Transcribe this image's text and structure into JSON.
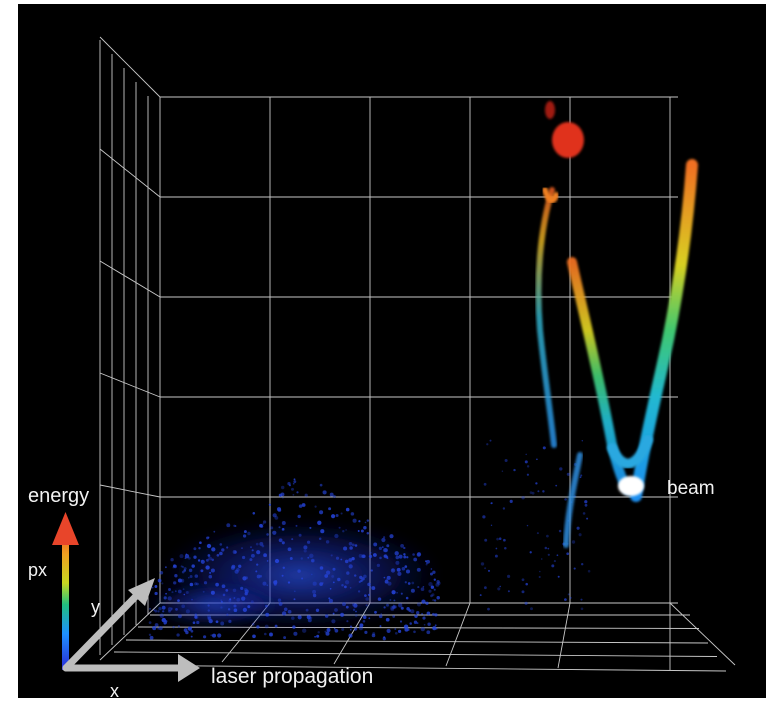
{
  "labels": {
    "energy": "energy",
    "px": "px",
    "y": "y",
    "x": "x",
    "laser_propagation": "laser propagation",
    "beam": "beam"
  },
  "colors": {
    "background": "#000000",
    "grid": "#c8c8c8",
    "axis_arrow": "#bdbdbd",
    "colorbar_top": "#e8452a",
    "colorbar_bottom": "#2a2ad8",
    "beam_core": "#ffffff"
  },
  "chart_data": {
    "type": "scatter",
    "subtype": "3d-particle-phase-space",
    "title": "",
    "axes": [
      "laser propagation",
      "x",
      "y"
    ],
    "color_encoding": "px (energy), blue = low to red = high",
    "colormap": [
      "#2020e0",
      "#1e90ff",
      "#20c8c0",
      "#40d060",
      "#e0e020",
      "#f09020",
      "#e02818"
    ],
    "grid": true,
    "annotations": [
      "beam"
    ],
    "structures": [
      {
        "name": "low-energy background plasma electrons",
        "color": "blue",
        "region": "bottom-center"
      },
      {
        "name": "accelerated electron arcs",
        "color": "cyan to red",
        "region": "right"
      },
      {
        "name": "beam",
        "color": "white",
        "region": "right, near bottom of arcs"
      }
    ]
  }
}
